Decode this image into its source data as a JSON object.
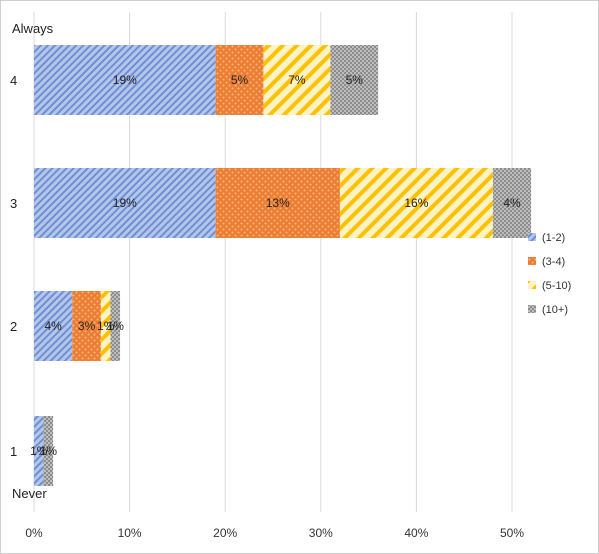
{
  "chart_data": {
    "type": "bar",
    "orientation": "horizontal",
    "stacked": true,
    "categories": [
      "4",
      "3",
      "2",
      "1"
    ],
    "top_annotation": "Always",
    "bottom_annotation": "Never",
    "series": [
      {
        "name": "(1-2)",
        "values": [
          19,
          19,
          4,
          1
        ],
        "labels": [
          "19%",
          "19%",
          "4%",
          "1%"
        ],
        "color": "#8fa8dc"
      },
      {
        "name": "(3-4)",
        "values": [
          5,
          13,
          3,
          0
        ],
        "labels": [
          "5%",
          "13%",
          "3%",
          ""
        ],
        "color": "#ed7d31"
      },
      {
        "name": "(5-10)",
        "values": [
          7,
          16,
          1,
          0
        ],
        "labels": [
          "7%",
          "16%",
          "1%",
          ""
        ],
        "color": "#ffc000"
      },
      {
        "name": "(10+)",
        "values": [
          5,
          4,
          1,
          1
        ],
        "labels": [
          "5%",
          "4%",
          "1%",
          "1%"
        ],
        "color": "#a5a5a5"
      }
    ],
    "xlim": [
      0,
      50
    ],
    "xticks": [
      "0%",
      "10%",
      "20%",
      "30%",
      "40%",
      "50%"
    ],
    "grid": true,
    "legend_position": "right"
  }
}
